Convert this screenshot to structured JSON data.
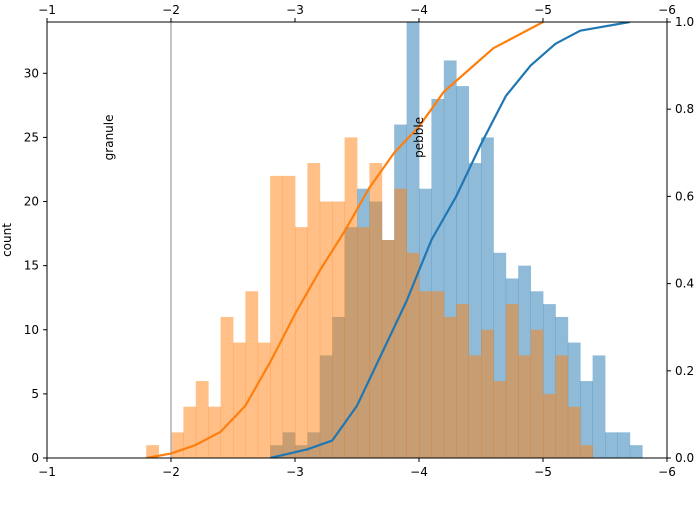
{
  "chart_data": {
    "type": "histogram",
    "ylabel": "count",
    "x_axis": {
      "range": [
        -1,
        -6
      ],
      "ticks": [
        -1,
        -2,
        -3,
        -4,
        -5,
        -6
      ],
      "tick_labels": [
        "−1",
        "−2",
        "−3",
        "−4",
        "−5",
        "−6"
      ],
      "top_tick_labels": [
        "−1",
        "−2",
        "−3",
        "−4",
        "−5",
        "−6"
      ]
    },
    "y_axis_left": {
      "range": [
        0,
        34
      ],
      "ticks": [
        0,
        5,
        10,
        15,
        20,
        25,
        30
      ],
      "tick_labels": [
        "0",
        "5",
        "10",
        "15",
        "20",
        "25",
        "30"
      ]
    },
    "y_axis_right": {
      "range": [
        0,
        1
      ],
      "ticks": [
        0,
        0.2,
        0.4,
        0.6,
        0.8,
        1.0
      ],
      "tick_labels": [
        "0.0",
        "0.2",
        "0.4",
        "0.6",
        "0.8",
        "1.0"
      ]
    },
    "bin_width": 0.1,
    "series": [
      {
        "color": "#1f77b4",
        "bins_start": -2.8,
        "counts": [
          1,
          2,
          1,
          2,
          8,
          11,
          18,
          21,
          20,
          17,
          26,
          34,
          21,
          28,
          31,
          29,
          23,
          25,
          16,
          14,
          15,
          13,
          12,
          11,
          9,
          6,
          8,
          2,
          2,
          1
        ]
      },
      {
        "color": "#ff7f0e",
        "bins_start": -1.8,
        "counts": [
          1,
          0,
          2,
          4,
          6,
          4,
          11,
          9,
          13,
          9,
          22,
          22,
          18,
          23,
          20,
          20,
          25,
          18,
          23,
          17,
          21,
          16,
          13,
          13,
          11,
          12,
          8,
          10,
          6,
          12,
          8,
          10,
          5,
          8,
          4,
          1
        ]
      }
    ],
    "cdf_series": [
      {
        "color": "#1f77b4",
        "points": [
          [
            -2.8,
            0.0
          ],
          [
            -3.1,
            0.02
          ],
          [
            -3.3,
            0.04
          ],
          [
            -3.5,
            0.12
          ],
          [
            -3.7,
            0.24
          ],
          [
            -3.9,
            0.36
          ],
          [
            -4.1,
            0.5
          ],
          [
            -4.3,
            0.6
          ],
          [
            -4.5,
            0.72
          ],
          [
            -4.7,
            0.83
          ],
          [
            -4.9,
            0.9
          ],
          [
            -5.1,
            0.95
          ],
          [
            -5.3,
            0.98
          ],
          [
            -5.7,
            1.0
          ]
        ]
      },
      {
        "color": "#ff7f0e",
        "points": [
          [
            -1.8,
            0.0
          ],
          [
            -2.0,
            0.01
          ],
          [
            -2.2,
            0.03
          ],
          [
            -2.4,
            0.06
          ],
          [
            -2.6,
            0.12
          ],
          [
            -2.8,
            0.22
          ],
          [
            -3.0,
            0.33
          ],
          [
            -3.2,
            0.43
          ],
          [
            -3.4,
            0.52
          ],
          [
            -3.6,
            0.62
          ],
          [
            -3.8,
            0.7
          ],
          [
            -4.0,
            0.76
          ],
          [
            -4.2,
            0.84
          ],
          [
            -4.4,
            0.89
          ],
          [
            -4.6,
            0.94
          ],
          [
            -4.8,
            0.97
          ],
          [
            -5.0,
            1.0
          ]
        ]
      }
    ],
    "reference_line": {
      "x": -2.0,
      "color": "#b0b0b0"
    },
    "annotations": [
      {
        "text": "granule",
        "x": -1.5,
        "y": 25
      },
      {
        "text": "pebble",
        "x": -4.0,
        "y": 25
      }
    ]
  }
}
